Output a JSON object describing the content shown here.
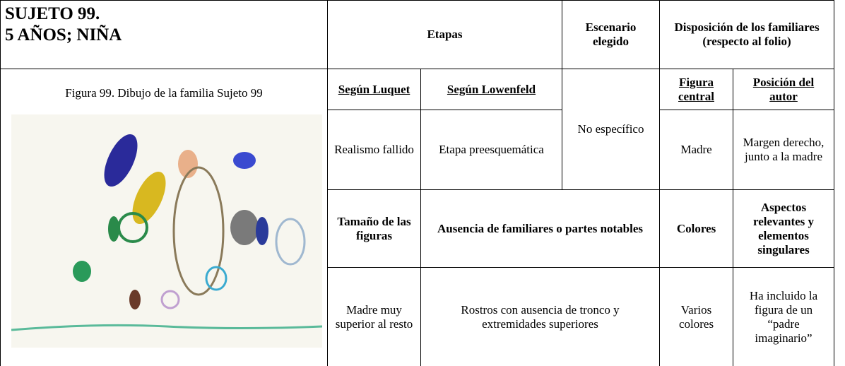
{
  "subject": {
    "lines": [
      "SUJETO 99.",
      "5 AÑOS; NIÑA"
    ]
  },
  "figure_caption": "Figura 99. Dibujo de la familia Sujeto 99",
  "header": {
    "stages": "Etapas",
    "scenario": "Escenario elegido",
    "arrangement": "Disposición de los familiares (respecto al folio)"
  },
  "subheader": {
    "luquet": "Según Luquet",
    "lowenfeld": "Según Lowenfeld",
    "central_figure": "Figura central",
    "author_position": "Posición del autor"
  },
  "row1": {
    "luquet": "Realismo fallido",
    "lowenfeld": "Etapa preesquemática",
    "scenario": "No específico",
    "central_figure": "Madre",
    "author_position": "Margen derecho, junto a la madre"
  },
  "subheader2": {
    "size": "Tamaño de las figuras",
    "absence": "Ausencia de familiares o partes notables",
    "colors": "Colores",
    "aspects": "Aspectos relevantes y elementos singulares"
  },
  "row2": {
    "size": "Madre muy superior al resto",
    "absence": "Rostros con ausencia de tronco y extremidades superiores",
    "colors": "Varios colores",
    "aspects": "Ha incluido la figura de un “padre imaginario”"
  }
}
